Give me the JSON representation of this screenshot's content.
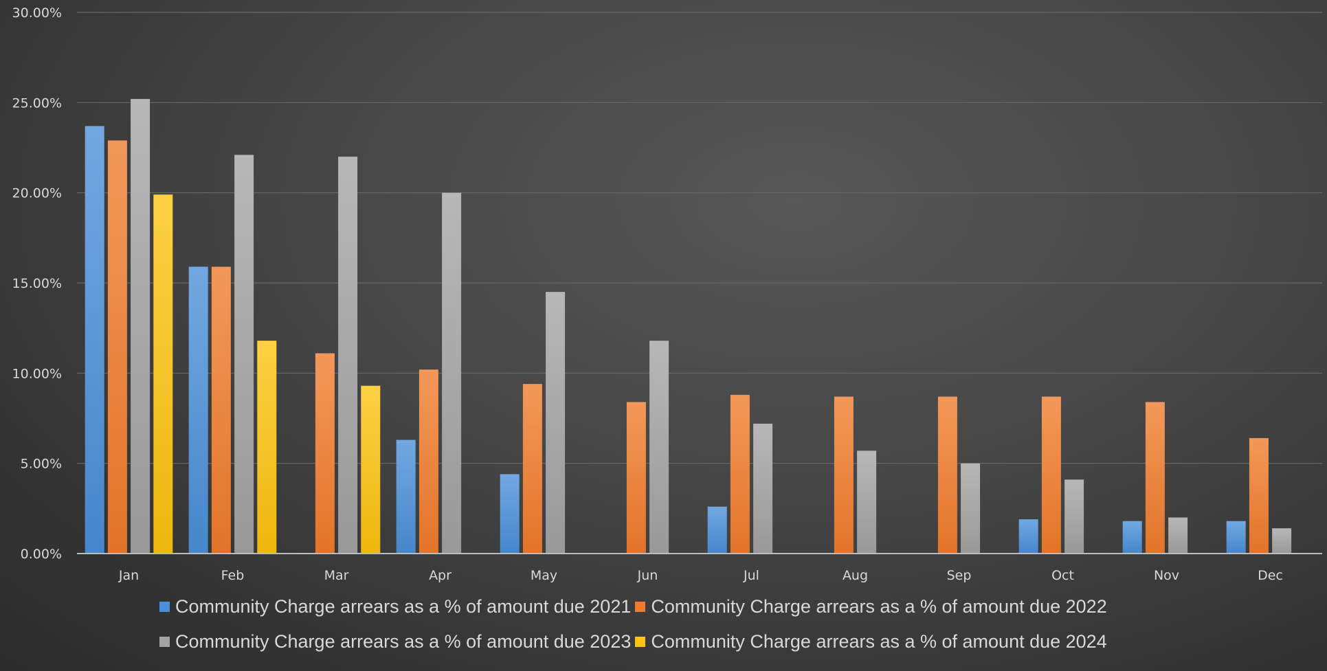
{
  "chart_data": {
    "type": "bar",
    "title": "",
    "xlabel": "",
    "ylabel": "",
    "categories": [
      "Jan",
      "Feb",
      "Mar",
      "Apr",
      "May",
      "Jun",
      "Jul",
      "Aug",
      "Sep",
      "Oct",
      "Nov",
      "Dec"
    ],
    "y_ticks": [
      "0.00%",
      "5.00%",
      "10.00%",
      "15.00%",
      "20.00%",
      "25.00%",
      "30.00%"
    ],
    "ylim": [
      0,
      30
    ],
    "grid": true,
    "legend_position": "bottom",
    "series": [
      {
        "name": "Community Charge arrears as a % of amount due 2021",
        "color": "#4a8fd8",
        "values": [
          23.7,
          15.9,
          null,
          6.3,
          4.4,
          null,
          2.6,
          null,
          null,
          1.9,
          1.8,
          1.8
        ]
      },
      {
        "name": "Community Charge arrears as a % of amount due 2022",
        "color": "#f07b2c",
        "values": [
          22.9,
          15.9,
          11.1,
          10.2,
          9.4,
          8.4,
          8.8,
          8.7,
          8.7,
          8.7,
          8.4,
          6.4
        ]
      },
      {
        "name": "Community Charge arrears as a % of amount due 2023",
        "color": "#a3a3a3",
        "values": [
          25.2,
          22.1,
          22.0,
          20.0,
          14.5,
          11.8,
          7.2,
          5.7,
          5.0,
          4.1,
          2.0,
          1.4
        ]
      },
      {
        "name": "Community Charge arrears as a % of amount due 2024",
        "color": "#fcc30f",
        "values": [
          19.9,
          11.8,
          9.3,
          null,
          null,
          null,
          null,
          null,
          null,
          null,
          null,
          null
        ]
      }
    ]
  }
}
